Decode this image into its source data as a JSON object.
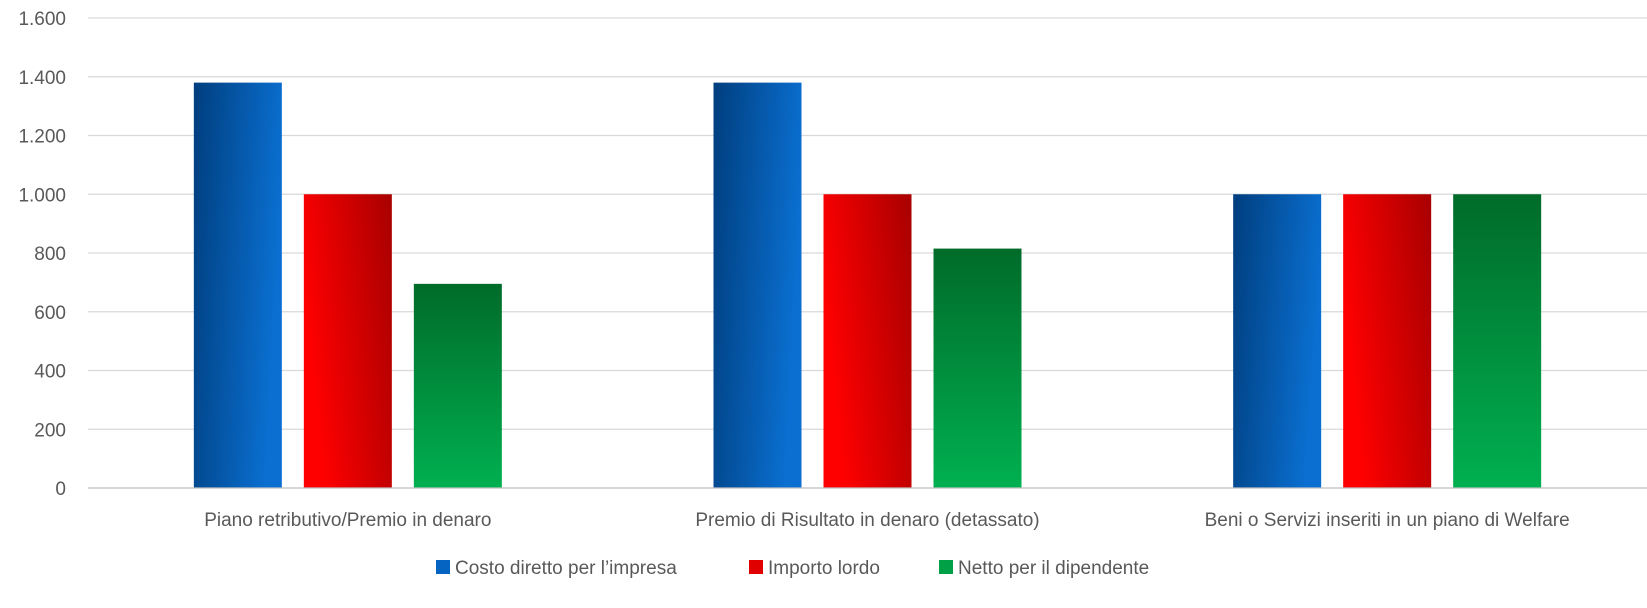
{
  "chart_data": {
    "type": "bar",
    "title": "",
    "xlabel": "",
    "ylabel": "",
    "ylim": [
      0,
      1600
    ],
    "yticks": [
      0,
      200,
      400,
      600,
      800,
      1000,
      1200,
      1400,
      1600
    ],
    "ytick_labels": [
      "0",
      "200",
      "400",
      "600",
      "800",
      "1.000",
      "1.200",
      "1.400",
      "1.600"
    ],
    "grid": true,
    "legend_position": "bottom",
    "categories": [
      "Piano retributivo/Premio in denaro",
      "Premio di Risultato in denaro (detassato)",
      "Beni o Servizi inseriti in un piano di Welfare"
    ],
    "series": [
      {
        "name": "Costo diretto per l’impresa",
        "values": [
          1380,
          1380,
          1000
        ],
        "color": "#0563C1",
        "gradient": [
          "#003E7E",
          "#0A6FD0"
        ]
      },
      {
        "name": "Importo lordo",
        "values": [
          1000,
          1000,
          1000
        ],
        "color": "#E00000",
        "gradient": [
          "#FF0000",
          "#A80000"
        ]
      },
      {
        "name": "Netto per il dipendente",
        "values": [
          695,
          815,
          1000
        ],
        "color": "#00A046",
        "gradient": [
          "#00B050",
          "#006B2A"
        ]
      }
    ]
  }
}
